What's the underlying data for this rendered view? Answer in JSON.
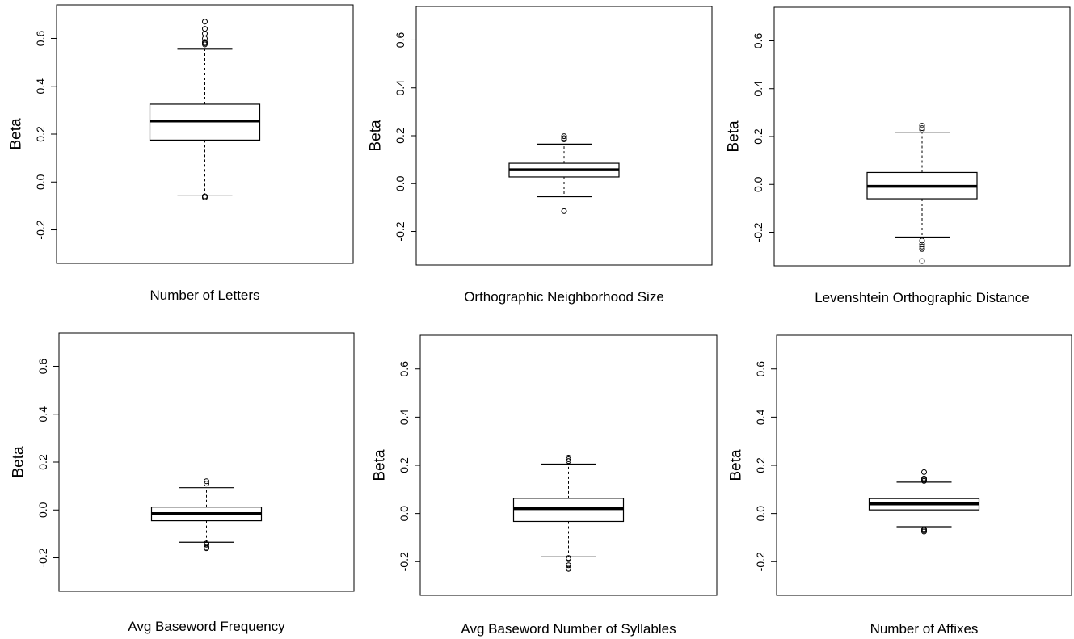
{
  "chart_data": [
    {
      "type": "boxplot",
      "xlabel": "Number of Letters",
      "ylabel": "Beta",
      "yticks": [
        "-0.2",
        "0.0",
        "0.2",
        "0.4",
        "0.6"
      ],
      "ylim": [
        -0.34,
        0.74
      ],
      "box": {
        "whisker_low": -0.055,
        "q1": 0.175,
        "median": 0.255,
        "q3": 0.325,
        "whisker_high": 0.555
      },
      "outliers": [
        0.67,
        0.64,
        0.62,
        0.6,
        0.585,
        0.58,
        0.575,
        -0.06,
        -0.065
      ]
    },
    {
      "type": "boxplot",
      "xlabel": "Orthographic Neighborhood Size",
      "ylabel": "Beta",
      "yticks": [
        "-0.2",
        "0.0",
        "0.2",
        "0.4",
        "0.6"
      ],
      "ylim": [
        -0.34,
        0.74
      ],
      "box": {
        "whisker_low": -0.055,
        "q1": 0.028,
        "median": 0.058,
        "q3": 0.085,
        "whisker_high": 0.165
      },
      "outliers": [
        0.198,
        0.19,
        0.185,
        -0.115
      ]
    },
    {
      "type": "boxplot",
      "xlabel": "Levenshtein Orthographic Distance",
      "ylabel": "Beta",
      "yticks": [
        "-0.2",
        "0.0",
        "0.2",
        "0.4",
        "0.6"
      ],
      "ylim": [
        -0.34,
        0.74
      ],
      "box": {
        "whisker_low": -0.22,
        "q1": -0.06,
        "median": -0.008,
        "q3": 0.05,
        "whisker_high": 0.218
      },
      "outliers": [
        0.245,
        0.235,
        0.228,
        -0.235,
        -0.25,
        -0.26,
        -0.27,
        -0.32
      ]
    },
    {
      "type": "boxplot",
      "xlabel": "Avg Baseword Frequency",
      "ylabel": "Beta",
      "yticks": [
        "-0.2",
        "0.0",
        "0.2",
        "0.4",
        "0.6"
      ],
      "ylim": [
        -0.34,
        0.74
      ],
      "box": {
        "whisker_low": -0.135,
        "q1": -0.045,
        "median": -0.015,
        "q3": 0.012,
        "whisker_high": 0.093
      },
      "outliers": [
        0.12,
        0.11,
        -0.14,
        -0.145,
        -0.155,
        -0.16
      ]
    },
    {
      "type": "boxplot",
      "xlabel": "Avg Baseword Number of Syllables",
      "ylabel": "Beta",
      "yticks": [
        "-0.2",
        "0.0",
        "0.2",
        "0.4",
        "0.6"
      ],
      "ylim": [
        -0.34,
        0.74
      ],
      "box": {
        "whisker_low": -0.18,
        "q1": -0.033,
        "median": 0.02,
        "q3": 0.063,
        "whisker_high": 0.205
      },
      "outliers": [
        0.232,
        0.225,
        0.218,
        -0.185,
        -0.19,
        -0.215,
        -0.225,
        -0.23
      ]
    },
    {
      "type": "boxplot",
      "xlabel": "Number of Affixes",
      "ylabel": "Beta",
      "yticks": [
        "-0.2",
        "0.0",
        "0.2",
        "0.4",
        "0.6"
      ],
      "ylim": [
        -0.34,
        0.74
      ],
      "box": {
        "whisker_low": -0.055,
        "q1": 0.015,
        "median": 0.04,
        "q3": 0.062,
        "whisker_high": 0.13
      },
      "outliers": [
        0.172,
        0.145,
        0.14,
        0.135,
        -0.065,
        -0.07,
        -0.075
      ]
    }
  ]
}
